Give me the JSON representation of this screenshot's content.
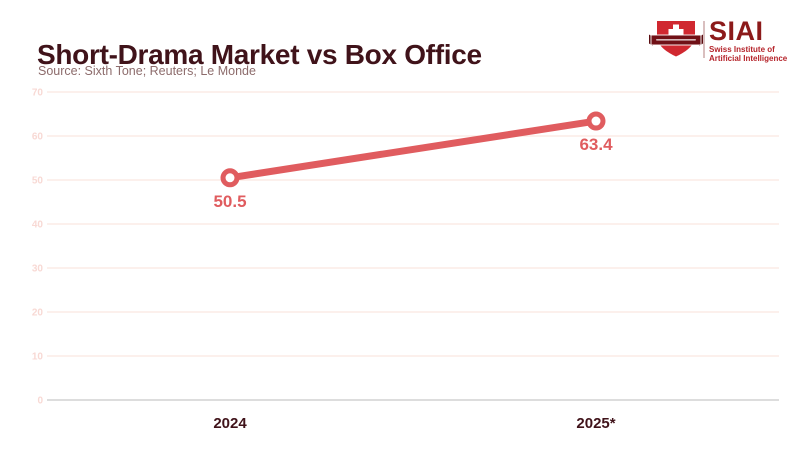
{
  "header": {
    "title": "Short-Drama Market vs Box Office",
    "source": "Source: Sixth Tone; Reuters; Le Monde",
    "title_color": "#40131a",
    "source_color": "#8d6c6c"
  },
  "logo": {
    "acronym": "SIAI",
    "name_line1": "Swiss Institute of",
    "name_line2": "Artificial Intelligence",
    "shield_red": "#d02830",
    "banner_red": "#701016",
    "cross_color": "#ffffff",
    "acronym_color": "#8c1a1a",
    "name_color": "#b5232a"
  },
  "chart_data": {
    "type": "line",
    "title": "Short-Drama Market vs Box Office",
    "categories": [
      "2024",
      "2025*"
    ],
    "series": [
      {
        "name": "Short-Drama Market vs Box Office",
        "values": [
          50.5,
          63.4
        ]
      }
    ],
    "data_labels": [
      "50.5",
      "63.4"
    ],
    "y_ticks": [
      0,
      10,
      20,
      30,
      40,
      50,
      60,
      70
    ],
    "ylim": [
      0,
      70
    ],
    "xlabel": "",
    "ylabel": "",
    "grid": true,
    "legend": false,
    "colors": {
      "line": "#e05c5f",
      "marker_fill": "#ffffff",
      "value_label": "#e05c5f",
      "grid_line": "#fae6e1",
      "zero_line": "#d2d2d2",
      "y_tick_label": "#f8d9d4",
      "x_tick_label": "#40131a"
    }
  }
}
